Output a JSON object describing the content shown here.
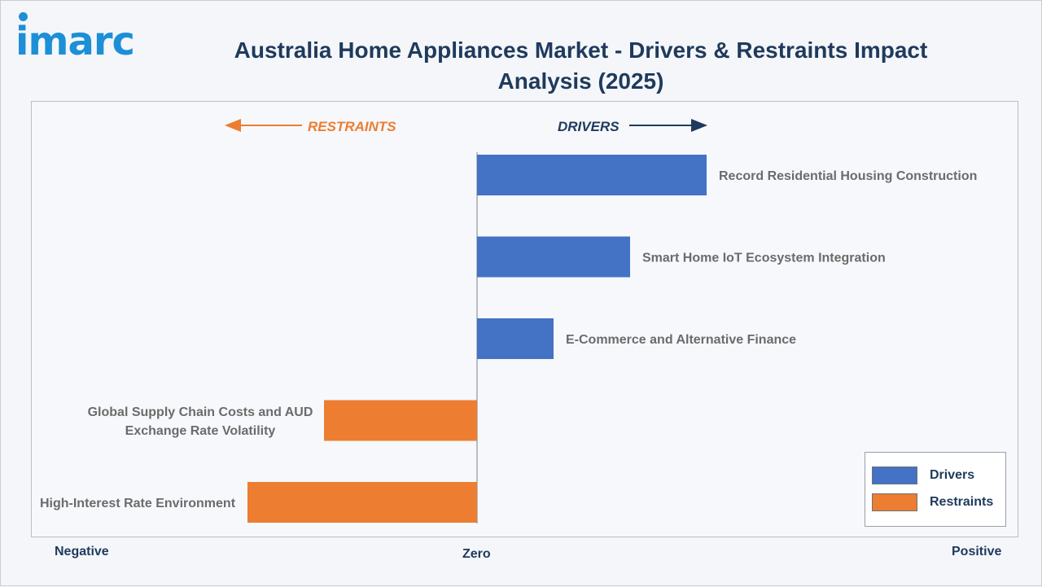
{
  "brand": {
    "logo_text": "imarc"
  },
  "title": "Australia Home Appliances Market - Drivers & Restraints Impact Analysis (2025)",
  "chart_data": {
    "type": "bar",
    "orientation": "horizontal",
    "direction_labels": {
      "restraints": "RESTRAINTS",
      "drivers": "DRIVERS"
    },
    "axis_labels": {
      "negative": "Negative",
      "zero": "Zero",
      "positive": "Positive"
    },
    "bars": [
      {
        "label": "Record Residential Housing Construction",
        "value": 3.0,
        "series": "Drivers"
      },
      {
        "label": "Smart Home IoT Ecosystem Integration",
        "value": 2.0,
        "series": "Drivers"
      },
      {
        "label": "E-Commerce and Alternative Finance",
        "value": 1.0,
        "series": "Drivers"
      },
      {
        "label": "Global Supply Chain Costs and AUD Exchange Rate Volatility",
        "label_lines": [
          "Global Supply Chain Costs and AUD",
          "Exchange Rate Volatility"
        ],
        "value": -2.0,
        "series": "Restraints"
      },
      {
        "label": "High-Interest Rate Environment",
        "value": -3.0,
        "series": "Restraints"
      }
    ],
    "legend": [
      {
        "name": "Drivers",
        "color": "#4472c4"
      },
      {
        "name": "Restraints",
        "color": "#ed7d31"
      }
    ],
    "legend_position": "bottom-right",
    "colors": {
      "drivers": "#4472c4",
      "restraints": "#ed7d31",
      "drivers_text": "#1f3a5c",
      "restraints_text": "#ed7d31",
      "label_text": "#6b6b6b"
    }
  }
}
